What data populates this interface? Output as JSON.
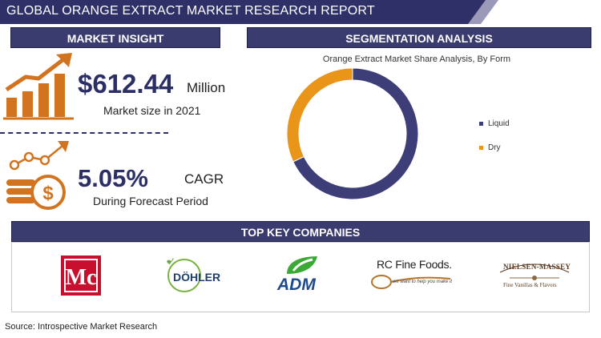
{
  "header": {
    "title": "GLOBAL ORANGE EXTRACT MARKET RESEARCH REPORT"
  },
  "market_insight": {
    "heading": "MARKET INSIGHT",
    "market_value": "$612.44",
    "market_unit": "Million",
    "market_caption": "Market size in 2021",
    "cagr_value": "5.05%",
    "cagr_unit": "CAGR",
    "cagr_caption": "During Forecast Period"
  },
  "segmentation": {
    "heading": "SEGMENTATION ANALYSIS"
  },
  "chart_data": {
    "type": "pie",
    "title": "Orange Extract Market Share Analysis, By Form",
    "categories": [
      "Liquid",
      "Dry"
    ],
    "values": [
      68,
      32
    ],
    "colors": [
      "#3d3d78",
      "#e8951a"
    ],
    "donut": true,
    "legend": "right"
  },
  "companies": {
    "heading": "TOP KEY COMPANIES",
    "logos": [
      {
        "name": "McCormick",
        "lettering": "Mc",
        "icon": "mccormick-logo"
      },
      {
        "name": "DÖHLER",
        "lettering": "DÖHLER",
        "icon": "dohler-logo"
      },
      {
        "name": "ADM",
        "lettering": "ADM",
        "icon": "adm-logo"
      },
      {
        "name": "RC Fine Foods",
        "lettering": "RC Fine Foods.",
        "sub": "we want to help you make it",
        "icon": "rc-fine-foods-logo"
      },
      {
        "name": "Nielsen-Massey",
        "lettering": "NIELSEN-MASSEY",
        "sub": "Fine Vanillas & Flavors",
        "icon": "nielsen-massey-logo"
      }
    ]
  },
  "footer": {
    "source": "Source: Introspective Market Research"
  },
  "colors": {
    "navy": "#3a3b6f",
    "orange": "#d2741f"
  }
}
